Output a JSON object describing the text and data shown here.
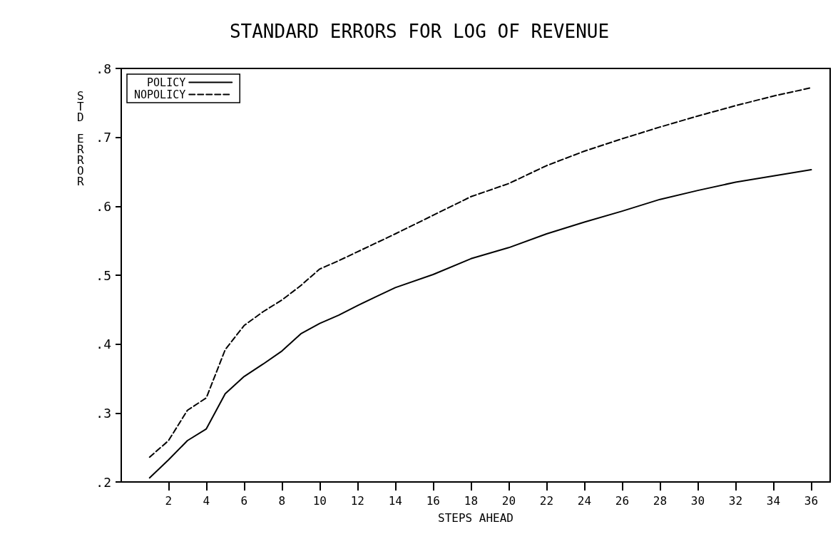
{
  "chart_data": {
    "type": "line",
    "title": "STANDARD ERRORS FOR LOG OF REVENUE",
    "xlabel": "STEPS AHEAD",
    "ylabel": "STD ERROR",
    "xlim": [
      -0.5,
      37
    ],
    "xticks": [
      2,
      4,
      6,
      8,
      10,
      12,
      14,
      16,
      18,
      20,
      22,
      24,
      26,
      28,
      30,
      32,
      34,
      36
    ],
    "ylim": [
      0.2,
      0.8
    ],
    "yticks": [
      {
        "value": 0.2,
        "label": ".2"
      },
      {
        "value": 0.3,
        "label": ".3"
      },
      {
        "value": 0.4,
        "label": ".4"
      },
      {
        "value": 0.5,
        "label": ".5"
      },
      {
        "value": 0.6,
        "label": ".6"
      },
      {
        "value": 0.7,
        "label": ".7"
      },
      {
        "value": 0.8,
        "label": ".8"
      }
    ],
    "grid": false,
    "legend": "top left",
    "marker": "none",
    "series": [
      {
        "name": "POLICY",
        "color": "#000000",
        "line_style": "solid",
        "x": [
          1,
          2,
          3,
          4,
          5,
          6,
          7,
          8,
          9,
          10,
          11,
          12,
          13,
          14,
          16,
          18,
          20,
          22,
          24,
          26,
          28,
          30,
          32,
          34,
          36
        ],
        "values": [
          0.206,
          0.232,
          0.26,
          0.277,
          0.328,
          0.353,
          0.371,
          0.39,
          0.415,
          0.43,
          0.442,
          0.456,
          0.469,
          0.482,
          0.501,
          0.524,
          0.54,
          0.56,
          0.577,
          0.593,
          0.61,
          0.623,
          0.635,
          0.644,
          0.653
        ]
      },
      {
        "name": "NOPOLICY",
        "color": "#000000",
        "line_style": "dashed",
        "x": [
          1,
          2,
          3,
          4,
          5,
          6,
          7,
          8,
          9,
          10,
          11,
          12,
          14,
          16,
          18,
          20,
          22,
          24,
          26,
          28,
          30,
          32,
          34,
          36
        ],
        "values": [
          0.236,
          0.26,
          0.304,
          0.322,
          0.392,
          0.427,
          0.447,
          0.464,
          0.485,
          0.509,
          0.521,
          0.534,
          0.56,
          0.587,
          0.614,
          0.633,
          0.659,
          0.68,
          0.698,
          0.715,
          0.731,
          0.746,
          0.76,
          0.772
        ]
      }
    ]
  }
}
